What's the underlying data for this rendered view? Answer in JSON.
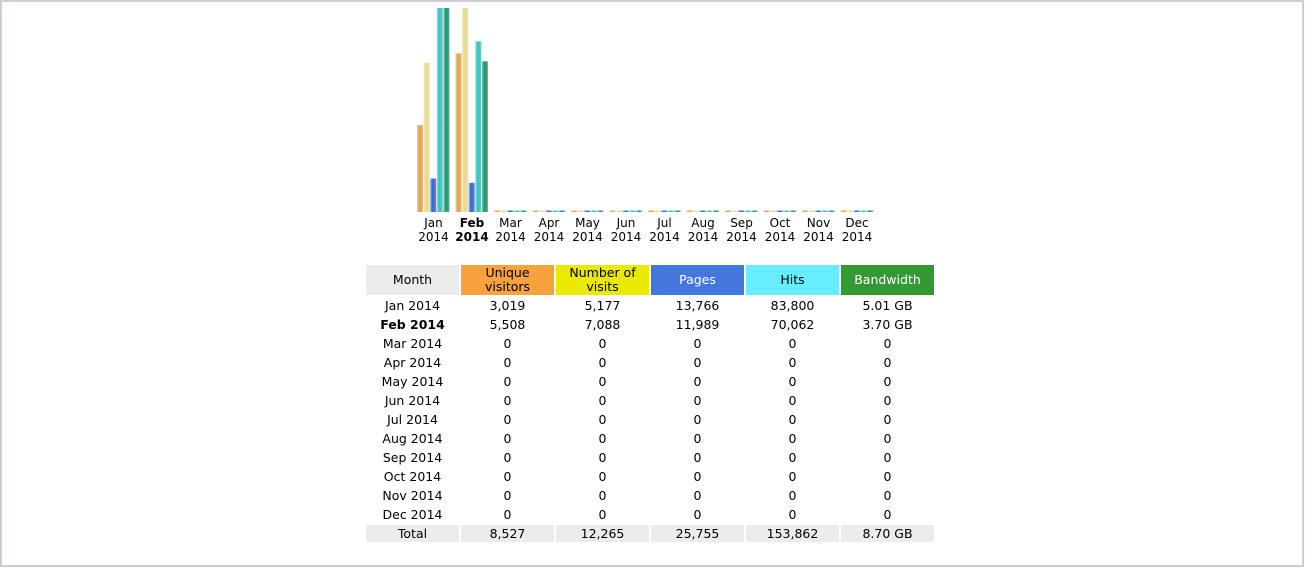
{
  "colors": {
    "unique": "#f7a23d",
    "visits": "#eaea00",
    "pages": "#4477dd",
    "hits": "#66eeff",
    "bandwidth": "#339933",
    "header_month": "#ececec",
    "bar_unique": "#e0a050",
    "bar_visits": "#e8d888",
    "bar_pages": "#3366cc",
    "bar_hits": "#33c0c0",
    "bar_bandwidth": "#22906a"
  },
  "chart_data": {
    "type": "bar",
    "categories": [
      "Jan 2014",
      "Feb 2014",
      "Mar 2014",
      "Apr 2014",
      "May 2014",
      "Jun 2014",
      "Jul 2014",
      "Aug 2014",
      "Sep 2014",
      "Oct 2014",
      "Nov 2014",
      "Dec 2014"
    ],
    "current_month_index": 1,
    "series": [
      {
        "name": "Unique visitors",
        "color": "#e0a050",
        "values": [
          3019,
          5508,
          0,
          0,
          0,
          0,
          0,
          0,
          0,
          0,
          0,
          0
        ]
      },
      {
        "name": "Number of visits",
        "color": "#e8d888",
        "values": [
          5177,
          7088,
          0,
          0,
          0,
          0,
          0,
          0,
          0,
          0,
          0,
          0
        ]
      },
      {
        "name": "Pages",
        "color": "#3366cc",
        "values": [
          13766,
          11989,
          0,
          0,
          0,
          0,
          0,
          0,
          0,
          0,
          0,
          0
        ]
      },
      {
        "name": "Hits",
        "color": "#33c0c0",
        "values": [
          83800,
          70062,
          0,
          0,
          0,
          0,
          0,
          0,
          0,
          0,
          0,
          0
        ]
      },
      {
        "name": "Bandwidth",
        "color": "#22906a",
        "values": [
          5.01,
          3.7,
          0,
          0,
          0,
          0,
          0,
          0,
          0,
          0,
          0,
          0
        ],
        "unit": "GB"
      }
    ],
    "x_labels": [
      {
        "month": "Jan",
        "year": "2014"
      },
      {
        "month": "Feb",
        "year": "2014"
      },
      {
        "month": "Mar",
        "year": "2014"
      },
      {
        "month": "Apr",
        "year": "2014"
      },
      {
        "month": "May",
        "year": "2014"
      },
      {
        "month": "Jun",
        "year": "2014"
      },
      {
        "month": "Jul",
        "year": "2014"
      },
      {
        "month": "Aug",
        "year": "2014"
      },
      {
        "month": "Sep",
        "year": "2014"
      },
      {
        "month": "Oct",
        "year": "2014"
      },
      {
        "month": "Nov",
        "year": "2014"
      },
      {
        "month": "Dec",
        "year": "2014"
      }
    ]
  },
  "table": {
    "headers": {
      "month": "Month",
      "unique": "Unique visitors",
      "visits": "Number of visits",
      "pages": "Pages",
      "hits": "Hits",
      "bandwidth": "Bandwidth"
    },
    "rows": [
      {
        "month": "Jan 2014",
        "unique": "3,019",
        "visits": "5,177",
        "pages": "13,766",
        "hits": "83,800",
        "bandwidth": "5.01 GB"
      },
      {
        "month": "Feb 2014",
        "unique": "5,508",
        "visits": "7,088",
        "pages": "11,989",
        "hits": "70,062",
        "bandwidth": "3.70 GB"
      },
      {
        "month": "Mar 2014",
        "unique": "0",
        "visits": "0",
        "pages": "0",
        "hits": "0",
        "bandwidth": "0"
      },
      {
        "month": "Apr 2014",
        "unique": "0",
        "visits": "0",
        "pages": "0",
        "hits": "0",
        "bandwidth": "0"
      },
      {
        "month": "May 2014",
        "unique": "0",
        "visits": "0",
        "pages": "0",
        "hits": "0",
        "bandwidth": "0"
      },
      {
        "month": "Jun 2014",
        "unique": "0",
        "visits": "0",
        "pages": "0",
        "hits": "0",
        "bandwidth": "0"
      },
      {
        "month": "Jul 2014",
        "unique": "0",
        "visits": "0",
        "pages": "0",
        "hits": "0",
        "bandwidth": "0"
      },
      {
        "month": "Aug 2014",
        "unique": "0",
        "visits": "0",
        "pages": "0",
        "hits": "0",
        "bandwidth": "0"
      },
      {
        "month": "Sep 2014",
        "unique": "0",
        "visits": "0",
        "pages": "0",
        "hits": "0",
        "bandwidth": "0"
      },
      {
        "month": "Oct 2014",
        "unique": "0",
        "visits": "0",
        "pages": "0",
        "hits": "0",
        "bandwidth": "0"
      },
      {
        "month": "Nov 2014",
        "unique": "0",
        "visits": "0",
        "pages": "0",
        "hits": "0",
        "bandwidth": "0"
      },
      {
        "month": "Dec 2014",
        "unique": "0",
        "visits": "0",
        "pages": "0",
        "hits": "0",
        "bandwidth": "0"
      }
    ],
    "total": {
      "label": "Total",
      "unique": "8,527",
      "visits": "12,265",
      "pages": "25,755",
      "hits": "153,862",
      "bandwidth": "8.70 GB"
    }
  }
}
